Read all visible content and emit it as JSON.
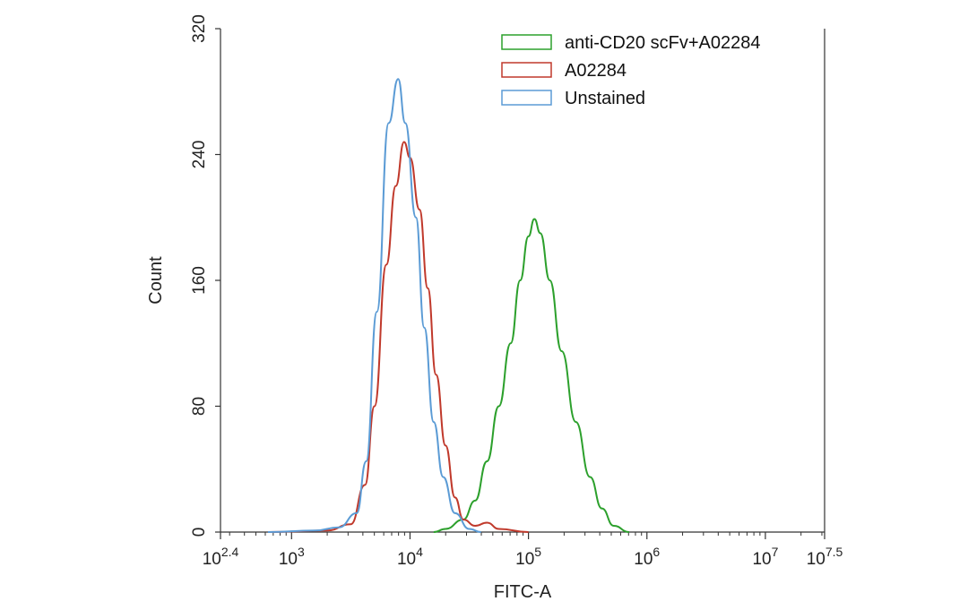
{
  "chart_data": {
    "type": "line",
    "xlabel": "FITC-A",
    "ylabel": "Count",
    "x_scale": "log10",
    "xlim_log10": [
      2.4,
      7.5
    ],
    "ylim": [
      0,
      320
    ],
    "x_ticks": [
      {
        "exp": 2.4,
        "base": "10",
        "sup": "2.4"
      },
      {
        "exp": 3,
        "base": "10",
        "sup": "3"
      },
      {
        "exp": 4,
        "base": "10",
        "sup": "4"
      },
      {
        "exp": 5,
        "base": "10",
        "sup": "5"
      },
      {
        "exp": 6,
        "base": "10",
        "sup": "6"
      },
      {
        "exp": 7,
        "base": "10",
        "sup": "7"
      },
      {
        "exp": 7.5,
        "base": "10",
        "sup": "7.5"
      }
    ],
    "y_ticks": [
      {
        "value": 0,
        "label": "0"
      },
      {
        "value": 80,
        "label": "80"
      },
      {
        "value": 160,
        "label": "160"
      },
      {
        "value": 240,
        "label": "240"
      },
      {
        "value": 320,
        "label": "320"
      }
    ],
    "legend_position": "top-right",
    "series": [
      {
        "name": "anti-CD20 scFv+A02284",
        "color": "#2ca02c",
        "points": [
          [
            4.2,
            0
          ],
          [
            4.3,
            2
          ],
          [
            4.45,
            8
          ],
          [
            4.55,
            20
          ],
          [
            4.65,
            45
          ],
          [
            4.75,
            80
          ],
          [
            4.85,
            120
          ],
          [
            4.93,
            160
          ],
          [
            5.0,
            188
          ],
          [
            5.05,
            199
          ],
          [
            5.1,
            190
          ],
          [
            5.18,
            160
          ],
          [
            5.28,
            115
          ],
          [
            5.4,
            70
          ],
          [
            5.52,
            35
          ],
          [
            5.62,
            15
          ],
          [
            5.72,
            4
          ],
          [
            5.85,
            0
          ]
        ]
      },
      {
        "name": "A02284",
        "color": "#c0392b",
        "points": [
          [
            2.8,
            0
          ],
          [
            3.3,
            1
          ],
          [
            3.5,
            5
          ],
          [
            3.62,
            30
          ],
          [
            3.7,
            80
          ],
          [
            3.8,
            170
          ],
          [
            3.88,
            220
          ],
          [
            3.95,
            248
          ],
          [
            4.0,
            238
          ],
          [
            4.08,
            205
          ],
          [
            4.15,
            155
          ],
          [
            4.22,
            100
          ],
          [
            4.3,
            55
          ],
          [
            4.38,
            22
          ],
          [
            4.45,
            8
          ],
          [
            4.55,
            4
          ],
          [
            4.65,
            6
          ],
          [
            4.75,
            2
          ],
          [
            5.0,
            0
          ]
        ]
      },
      {
        "name": "Unstained",
        "color": "#5b9bd5",
        "points": [
          [
            2.8,
            0
          ],
          [
            3.2,
            1
          ],
          [
            3.4,
            3
          ],
          [
            3.55,
            12
          ],
          [
            3.63,
            45
          ],
          [
            3.72,
            140
          ],
          [
            3.82,
            260
          ],
          [
            3.9,
            288
          ],
          [
            3.96,
            260
          ],
          [
            4.05,
            200
          ],
          [
            4.12,
            130
          ],
          [
            4.2,
            70
          ],
          [
            4.28,
            35
          ],
          [
            4.38,
            12
          ],
          [
            4.5,
            2
          ],
          [
            4.6,
            0
          ]
        ]
      }
    ]
  }
}
